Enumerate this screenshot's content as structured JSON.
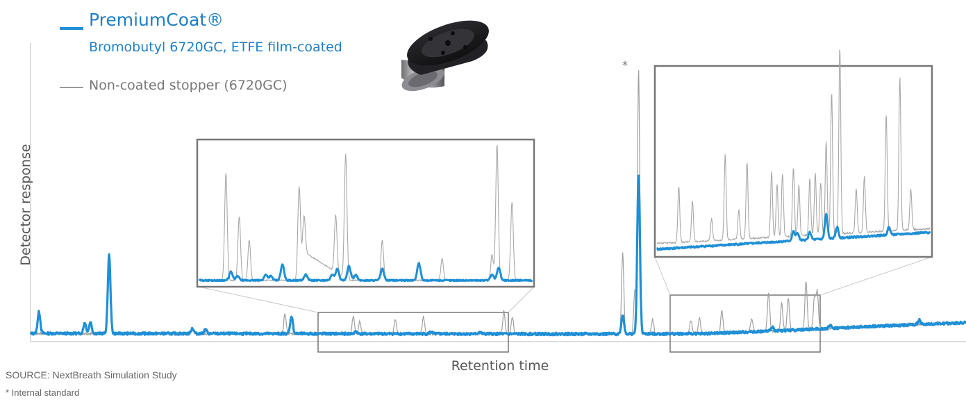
{
  "legend": {
    "premium_name": "PremiumCoat®",
    "premium_sub": "Bromobutyl 6720GC, ETFE film-coated",
    "noncoated_name": "Non-coated stopper (6720GC)"
  },
  "source": "SOURCE: NextBreath Simulation Study",
  "footnote": "* Internal standard",
  "icon": "rubber-stopper-icon",
  "chart_data": {
    "type": "line",
    "title": "",
    "xlabel": "Retention time",
    "ylabel": "Detector response",
    "xlim": [
      0,
      100
    ],
    "ylim": [
      0,
      100
    ],
    "grid": false,
    "ticks": "none",
    "legend_placement": "top-left",
    "annotations": [
      {
        "text": "*",
        "x": 65,
        "meaning": "Internal standard"
      }
    ],
    "colors": {
      "premium": "#1f8fd6",
      "noncoated": "#a0a0a0",
      "frame": "#777777"
    },
    "series": [
      {
        "name": "PremiumCoat®",
        "baseline": [
          [
            0,
            2.5
          ],
          [
            60,
            2.3
          ],
          [
            72,
            2.4
          ],
          [
            80,
            3.5
          ],
          [
            92,
            5.4
          ],
          [
            100,
            6.5
          ]
        ],
        "peaks": [
          [
            0.9,
            8.0
          ],
          [
            5.8,
            4.0
          ],
          [
            6.4,
            4.2
          ],
          [
            8.4,
            29.0
          ],
          [
            17.3,
            2.0
          ],
          [
            18.7,
            1.5
          ],
          [
            27.9,
            6.5
          ],
          [
            34.8,
            0.8
          ],
          [
            42.8,
            0.8
          ],
          [
            48.0,
            0.7
          ],
          [
            63.3,
            7.0
          ],
          [
            65.0,
            59.0
          ],
          [
            79.3,
            1.5
          ],
          [
            85.5,
            1.2
          ],
          [
            95.0,
            1.6
          ]
        ]
      },
      {
        "name": "Non-coated stopper (6720GC)",
        "baseline": [
          [
            0,
            2.5
          ],
          [
            60,
            2.3
          ],
          [
            72,
            2.4
          ],
          [
            80,
            3.5
          ],
          [
            92,
            5.4
          ],
          [
            100,
            6.5
          ]
        ],
        "peaks": [
          [
            8.4,
            30.0
          ],
          [
            17.3,
            2.0
          ],
          [
            27.2,
            7.5
          ],
          [
            34.5,
            6.5
          ],
          [
            35.2,
            4.5
          ],
          [
            39.0,
            5.5
          ],
          [
            42.0,
            6.5
          ],
          [
            50.6,
            8.5
          ],
          [
            51.5,
            6.5
          ],
          [
            63.3,
            30.0
          ],
          [
            64.6,
            16.0
          ],
          [
            65.0,
            98.0
          ],
          [
            66.5,
            5.5
          ],
          [
            70.6,
            5.0
          ],
          [
            71.5,
            6.0
          ],
          [
            73.9,
            8.0
          ],
          [
            77.1,
            5.0
          ],
          [
            78.9,
            14.0
          ],
          [
            80.3,
            10.0
          ],
          [
            81.0,
            12.0
          ],
          [
            82.9,
            18.0
          ],
          [
            83.8,
            12.0
          ],
          [
            84.1,
            14.0
          ]
        ]
      }
    ],
    "insets": [
      {
        "zoom_of_x": [
          33,
          52
        ],
        "series": [
          {
            "name": "PremiumCoat®",
            "baseline": 3,
            "peaks": [
              [
                9.5,
                6
              ],
              [
                11.5,
                3
              ],
              [
                20,
                4
              ],
              [
                21.5,
                3
              ],
              [
                25,
                11
              ],
              [
                32,
                4
              ],
              [
                40,
                4
              ],
              [
                41.5,
                8
              ],
              [
                45,
                10
              ],
              [
                47,
                4
              ],
              [
                55,
                8
              ],
              [
                66,
                12
              ],
              [
                88,
                4
              ],
              [
                90,
                9
              ]
            ]
          },
          {
            "name": "Non-coated stopper (6720GC)",
            "baseline": 3,
            "peaks": [
              [
                8,
                75
              ],
              [
                12,
                45
              ],
              [
                15,
                28
              ],
              [
                30,
                65
              ],
              [
                31.5,
                25
              ],
              [
                41,
                40
              ],
              [
                44,
                87
              ],
              [
                55,
                28
              ],
              [
                73,
                15
              ],
              [
                88,
                18
              ],
              [
                89.5,
                95
              ],
              [
                94,
                55
              ]
            ],
            "hump": {
              "from": 30,
              "to": 45,
              "level": 22
            }
          }
        ]
      },
      {
        "zoom_of_x": [
          69,
          85
        ],
        "series": [
          {
            "name": "PremiumCoat®",
            "baseline": [
              [
                0,
                3
              ],
              [
                100,
                12
              ]
            ],
            "peaks": [
              [
                50,
                5
              ],
              [
                51.5,
                4
              ],
              [
                56,
                4
              ],
              [
                62,
                13
              ],
              [
                66,
                6
              ],
              [
                85,
                4
              ]
            ]
          },
          {
            "name": "Non-coated stopper (6720GC)",
            "baseline": [
              [
                0,
                6
              ],
              [
                100,
                14
              ]
            ],
            "peaks": [
              [
                8,
                30
              ],
              [
                13,
                22
              ],
              [
                20,
                12
              ],
              [
                25,
                46
              ],
              [
                30,
                16
              ],
              [
                33,
                41
              ],
              [
                42,
                35
              ],
              [
                44,
                28
              ],
              [
                46,
                34
              ],
              [
                50,
                37
              ],
              [
                52,
                27
              ],
              [
                56,
                30
              ],
              [
                58,
                33
              ],
              [
                60,
                28
              ],
              [
                62,
                50
              ],
              [
                64,
                76
              ],
              [
                67,
                100
              ],
              [
                73,
                24
              ],
              [
                76,
                30
              ],
              [
                84,
                63
              ],
              [
                89,
                82
              ],
              [
                93,
                22
              ]
            ]
          }
        ]
      }
    ]
  }
}
